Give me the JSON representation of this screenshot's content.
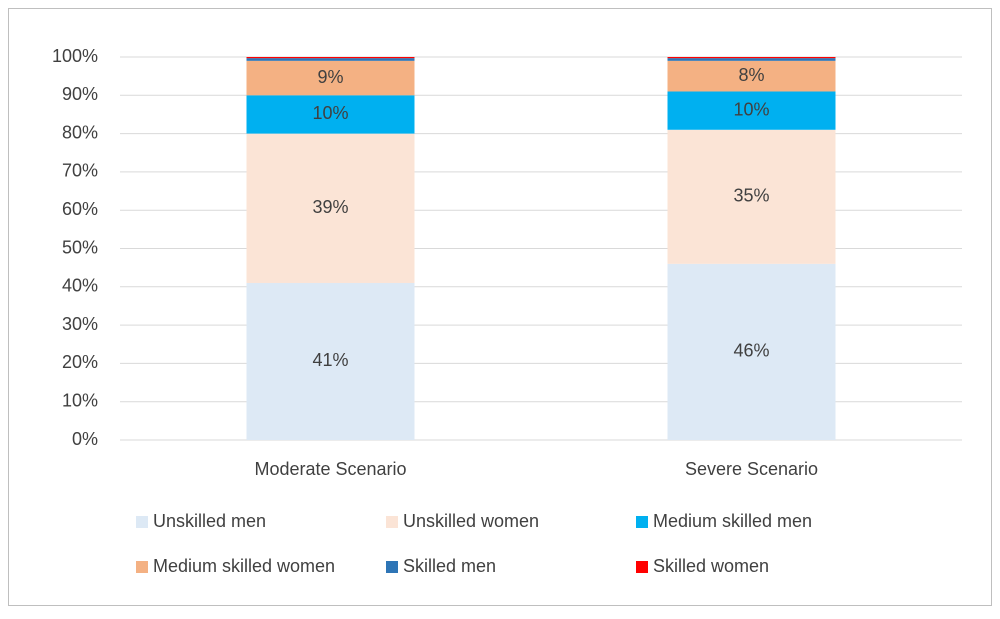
{
  "chart_data": {
    "type": "bar",
    "stacked": true,
    "categories": [
      "Moderate Scenario",
      "Severe Scenario"
    ],
    "series": [
      {
        "name": "Unskilled men",
        "color": "#dde9f5",
        "values": [
          41,
          46
        ],
        "value_labels": [
          "41%",
          "46%"
        ]
      },
      {
        "name": "Unskilled women",
        "color": "#fbe4d6",
        "values": [
          39,
          35
        ],
        "value_labels": [
          "39%",
          "35%"
        ]
      },
      {
        "name": "Medium skilled men",
        "color": "#00b0f0",
        "values": [
          10,
          10
        ],
        "value_labels": [
          "10%",
          "10%"
        ]
      },
      {
        "name": "Medium skilled women",
        "color": "#f4b183",
        "values": [
          9,
          8
        ],
        "value_labels": [
          "9%",
          "8%"
        ]
      },
      {
        "name": "Skilled men",
        "color": "#2e75b6",
        "values": [
          0.7,
          0.7
        ]
      },
      {
        "name": "Skilled women",
        "color": "#ff0000",
        "values": [
          0.3,
          0.3
        ]
      }
    ],
    "ylim": [
      0,
      100
    ],
    "yticks": [
      {
        "value": 0,
        "label": "0%"
      },
      {
        "value": 10,
        "label": "10%"
      },
      {
        "value": 20,
        "label": "20%"
      },
      {
        "value": 30,
        "label": "30%"
      },
      {
        "value": 40,
        "label": "40%"
      },
      {
        "value": 50,
        "label": "50%"
      },
      {
        "value": 60,
        "label": "60%"
      },
      {
        "value": 70,
        "label": "70%"
      },
      {
        "value": 80,
        "label": "80%"
      },
      {
        "value": 90,
        "label": "90%"
      },
      {
        "value": 100,
        "label": "100%"
      }
    ],
    "grid": true,
    "legend": "bottom"
  }
}
